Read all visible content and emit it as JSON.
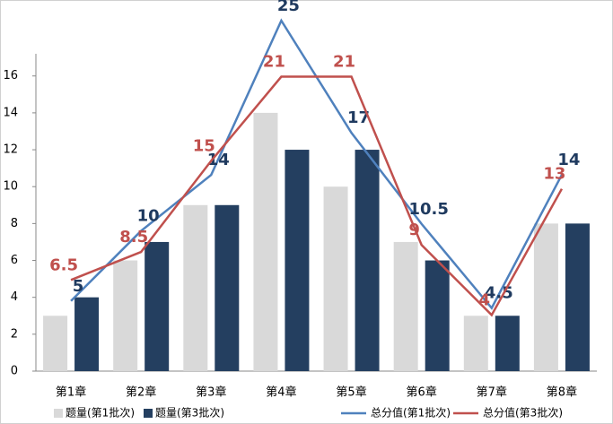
{
  "chart_data": {
    "type": "combo",
    "categories": [
      "第1章",
      "第2章",
      "第3章",
      "第4章",
      "第5章",
      "第6章",
      "第7章",
      "第8章"
    ],
    "series": [
      {
        "name": "题量(第1批次)",
        "type": "bar",
        "color": "#d9d9d9",
        "values": [
          3,
          6,
          9,
          14,
          10,
          7,
          3,
          8
        ]
      },
      {
        "name": "题量(第3批次)",
        "type": "bar",
        "color": "#243f60",
        "values": [
          4,
          7,
          9,
          12,
          12,
          6,
          3,
          8
        ]
      },
      {
        "name": "总分值(第1批次)",
        "type": "line",
        "axis": "y2",
        "color": "#4f81bd",
        "label_color": "#1f3a5f",
        "values": [
          5,
          10,
          14,
          25,
          17,
          10.5,
          4.5,
          14
        ]
      },
      {
        "name": "总分值(第3批次)",
        "type": "line",
        "axis": "y2",
        "color": "#c0504d",
        "label_color": "#c0504d",
        "values": [
          6.5,
          8.5,
          15,
          21,
          21,
          9,
          4,
          13
        ]
      }
    ],
    "ylim": [
      0,
      19
    ],
    "yticks": [
      0,
      2,
      4,
      6,
      8,
      10,
      12,
      14,
      16
    ],
    "y2lim": [
      0,
      25
    ],
    "grid": false,
    "legend": "bottom"
  }
}
